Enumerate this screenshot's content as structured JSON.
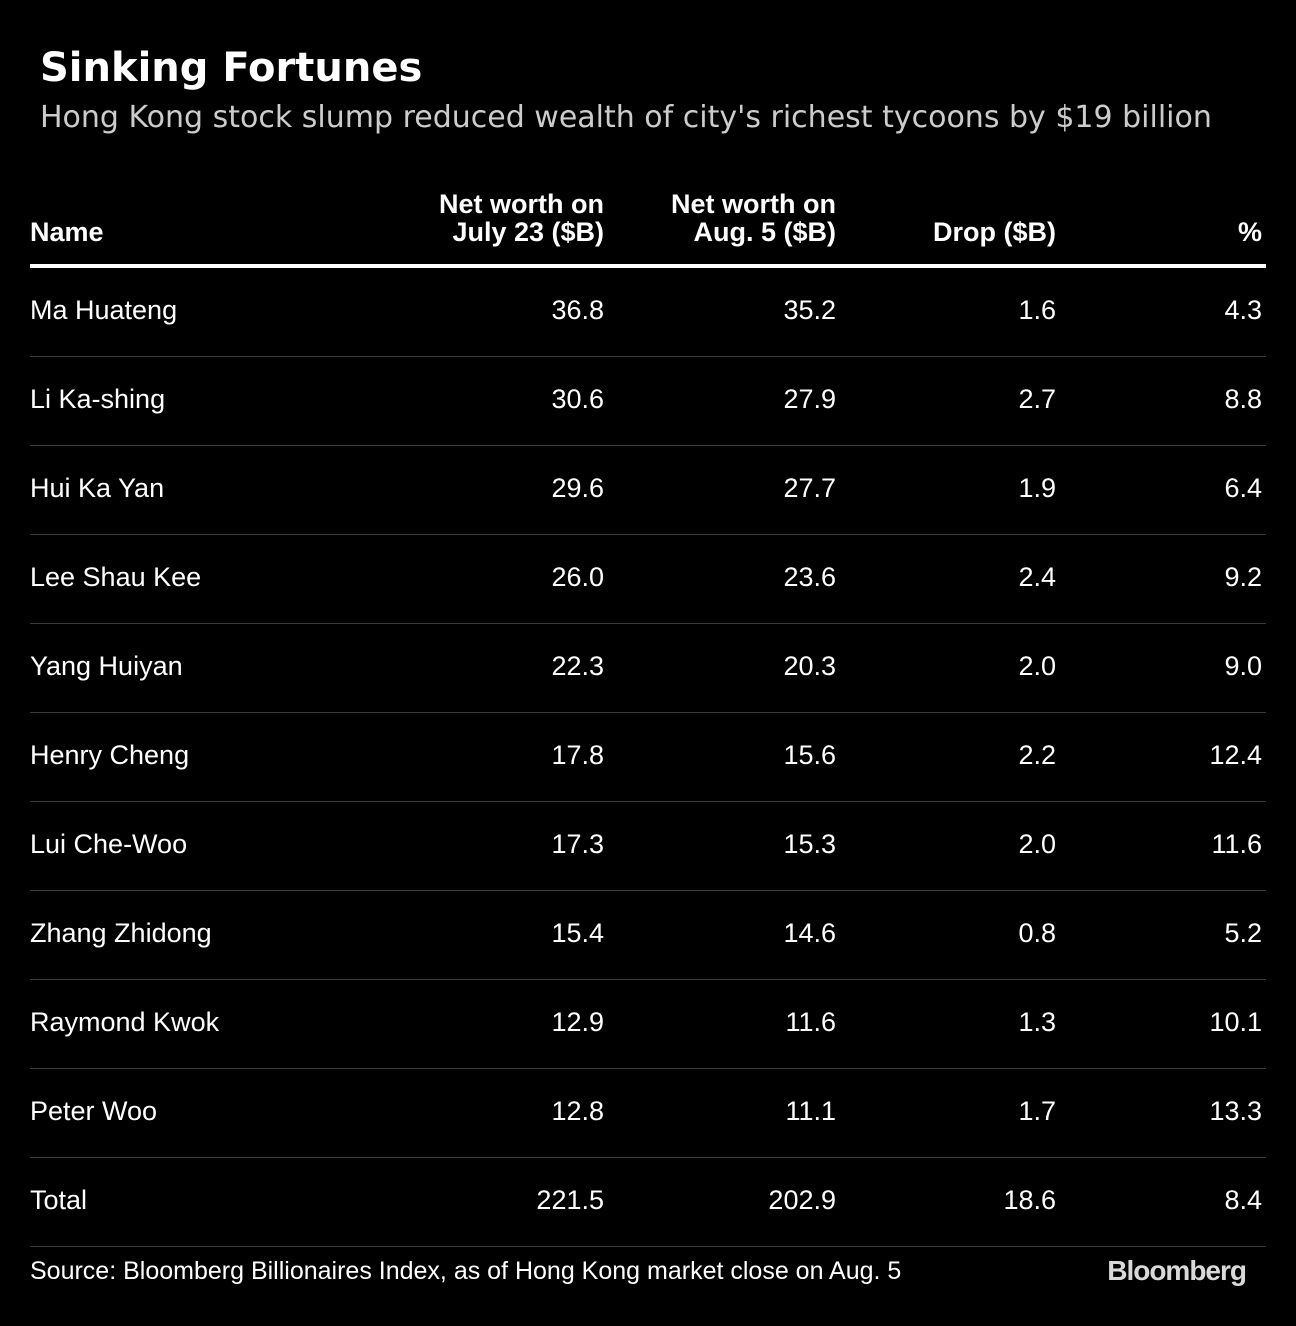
{
  "title": "Sinking Fortunes",
  "subtitle": "Hong Kong stock slump reduced wealth of city's richest tycoons by $19 billion",
  "chart_data": {
    "type": "table",
    "title": "Sinking Fortunes",
    "subtitle": "Hong Kong stock slump reduced wealth of city's richest tycoons by $19 billion",
    "columns": [
      {
        "key": "name",
        "label_lines": [
          "Name"
        ],
        "align": "left"
      },
      {
        "key": "jul23",
        "label_lines": [
          "Net worth on",
          "July 23 ($B)"
        ],
        "align": "right"
      },
      {
        "key": "aug5",
        "label_lines": [
          "Net worth on",
          "Aug. 5 ($B)"
        ],
        "align": "right"
      },
      {
        "key": "drop",
        "label_lines": [
          "Drop ($B)"
        ],
        "align": "right"
      },
      {
        "key": "pct",
        "label_lines": [
          "%"
        ],
        "align": "right"
      }
    ],
    "rows": [
      {
        "name": "Ma Huateng",
        "jul23": "36.8",
        "aug5": "35.2",
        "drop": "1.6",
        "pct": "4.3"
      },
      {
        "name": "Li Ka-shing",
        "jul23": "30.6",
        "aug5": "27.9",
        "drop": "2.7",
        "pct": "8.8"
      },
      {
        "name": "Hui Ka Yan",
        "jul23": "29.6",
        "aug5": "27.7",
        "drop": "1.9",
        "pct": "6.4"
      },
      {
        "name": "Lee Shau Kee",
        "jul23": "26.0",
        "aug5": "23.6",
        "drop": "2.4",
        "pct": "9.2"
      },
      {
        "name": "Yang Huiyan",
        "jul23": "22.3",
        "aug5": "20.3",
        "drop": "2.0",
        "pct": "9.0"
      },
      {
        "name": "Henry Cheng",
        "jul23": "17.8",
        "aug5": "15.6",
        "drop": "2.2",
        "pct": "12.4"
      },
      {
        "name": "Lui Che-Woo",
        "jul23": "17.3",
        "aug5": "15.3",
        "drop": "2.0",
        "pct": "11.6"
      },
      {
        "name": "Zhang Zhidong",
        "jul23": "15.4",
        "aug5": "14.6",
        "drop": "0.8",
        "pct": "5.2"
      },
      {
        "name": "Raymond Kwok",
        "jul23": "12.9",
        "aug5": "11.6",
        "drop": "1.3",
        "pct": "10.1"
      },
      {
        "name": "Peter Woo",
        "jul23": "12.8",
        "aug5": "11.1",
        "drop": "1.7",
        "pct": "13.3"
      },
      {
        "name": "Total",
        "jul23": "221.5",
        "aug5": "202.9",
        "drop": "18.6",
        "pct": "8.4"
      }
    ]
  },
  "source": "Source: Bloomberg Billionaires Index, as of Hong Kong market close on Aug. 5",
  "brand": "Bloomberg",
  "colors": {
    "background": "#000000",
    "text": "#ffffff",
    "subtitle": "#cccccc",
    "header_rule": "#ffffff",
    "row_rule": "#3a3a3a",
    "brand": "#d9d9d9"
  }
}
